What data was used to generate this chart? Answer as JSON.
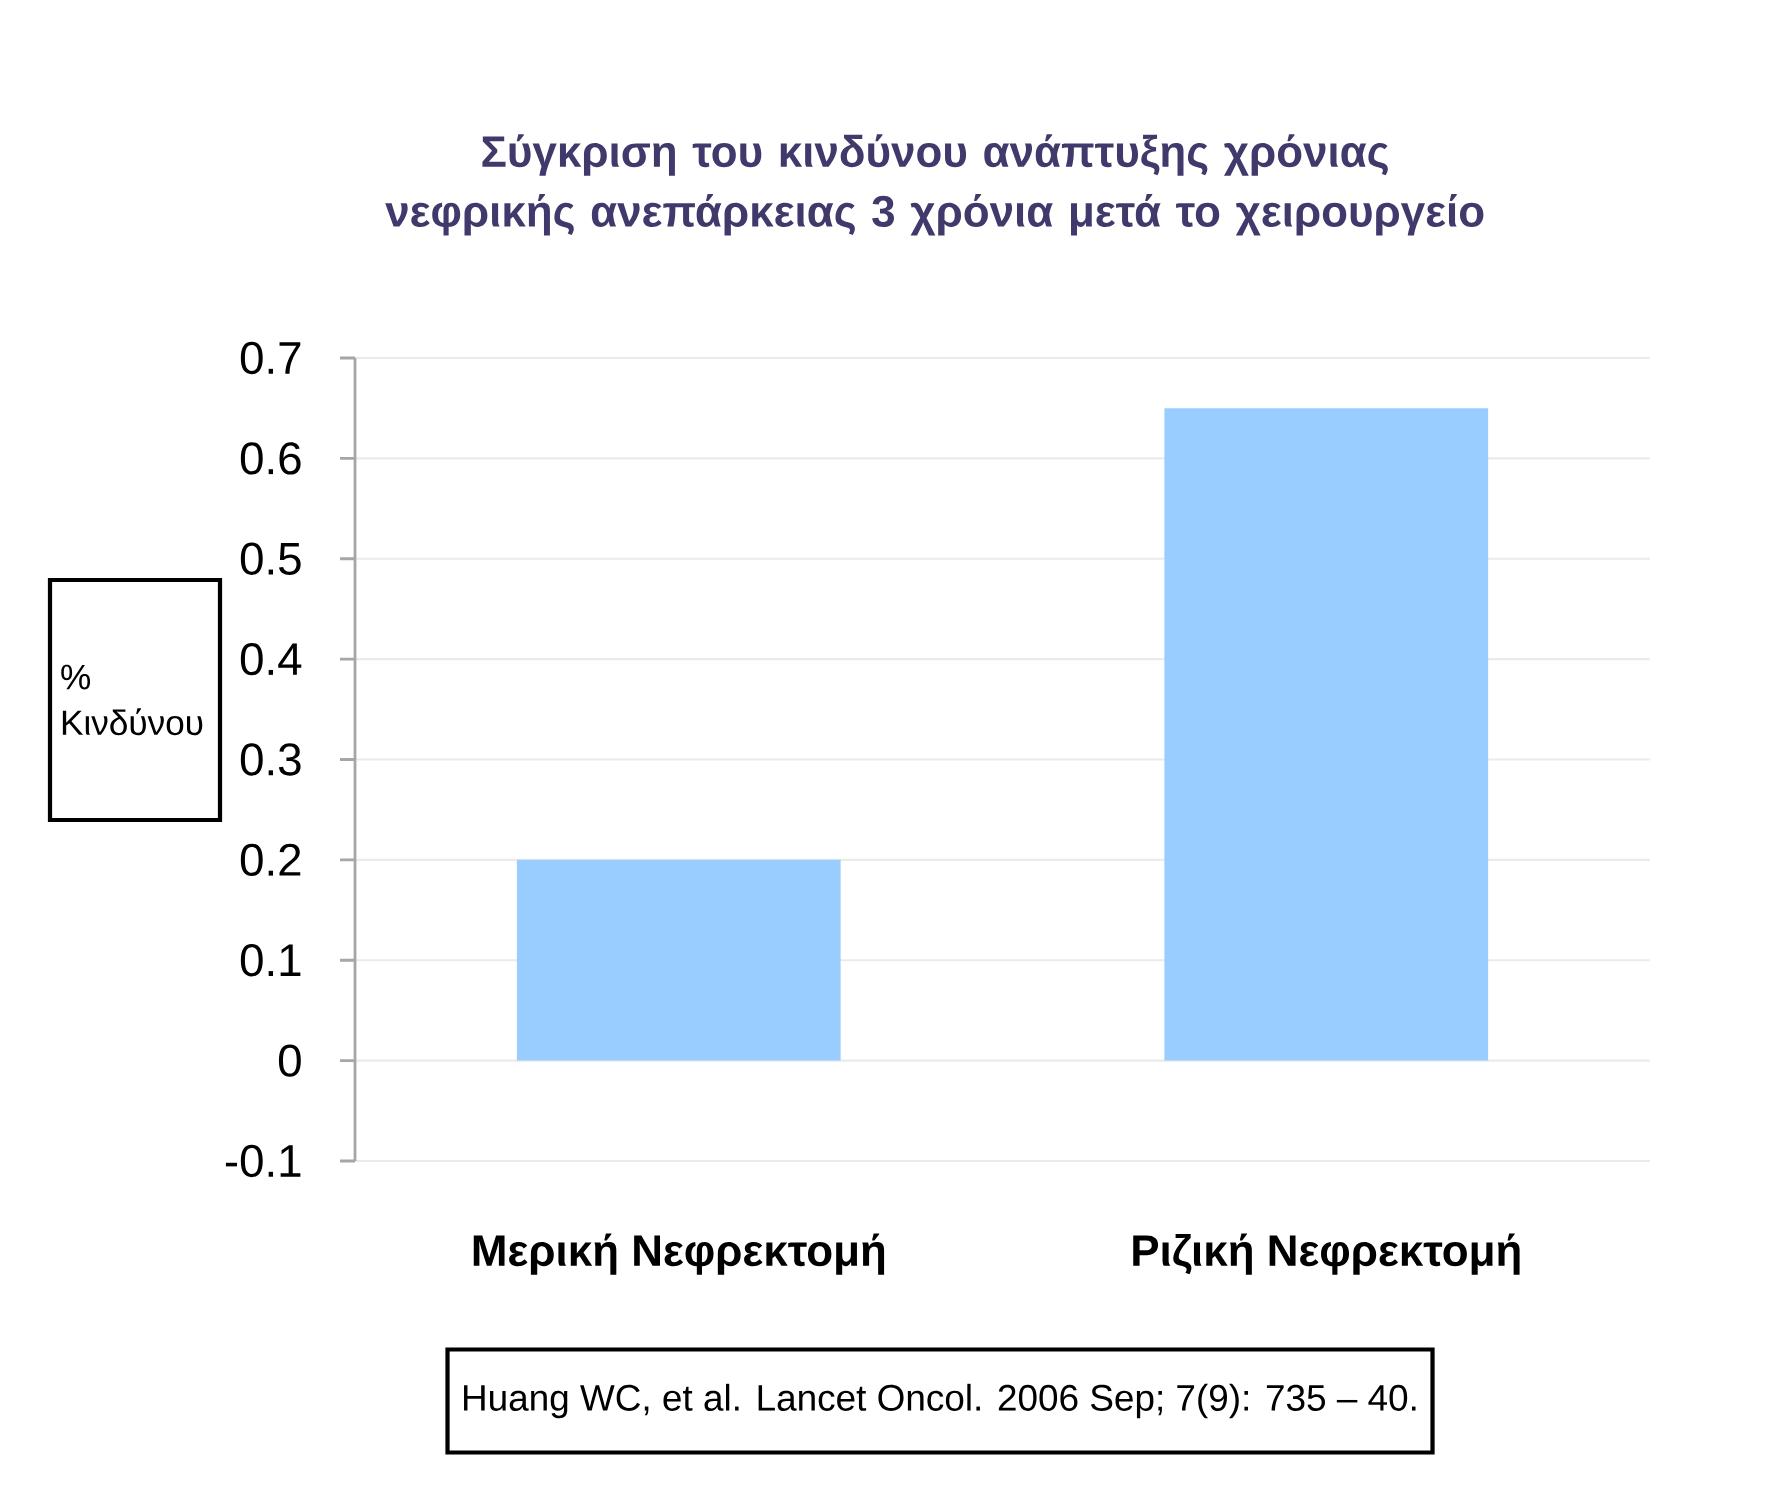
{
  "chart_data": {
    "type": "bar",
    "title": "Σύγκριση του κινδύνου ανάπτυξης χρόνιας νεφρικής ανεπάρκειας 3 χρόνια μετά το χειρουργείο",
    "ylabel": "% Κινδύνου",
    "categories": [
      "Μερική Νεφρεκτομή",
      "Ριζική Νεφρεκτομή"
    ],
    "values": [
      0.2,
      0.65
    ],
    "color": "#99ccff",
    "ylim": [
      -0.1,
      0.7
    ],
    "yticks": [
      -0.1,
      0,
      0.1,
      0.2,
      0.3,
      0.4,
      0.5,
      0.6,
      0.7
    ],
    "grid": "y",
    "annotations": [
      "Huang WC, et al. Lancet Oncol. 2006 Sep; 7(9): 735 – 40."
    ]
  }
}
